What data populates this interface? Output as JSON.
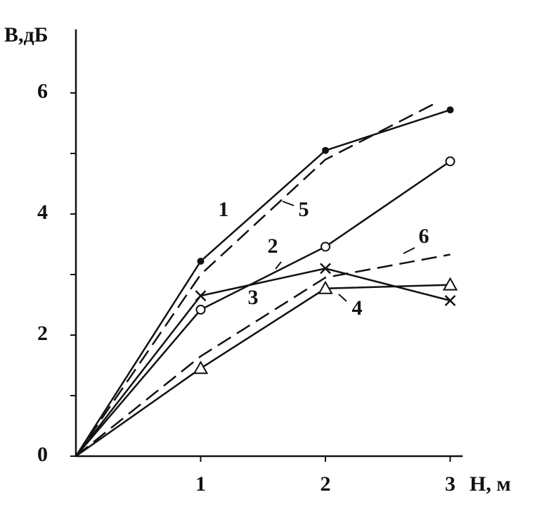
{
  "chart_data": {
    "type": "line",
    "y_label": "В,дБ",
    "x_label": "Н, м",
    "xlim": [
      0,
      3.1
    ],
    "ylim": [
      0,
      7.05
    ],
    "xticks": [
      1,
      2,
      3
    ],
    "yticks": [
      0,
      2,
      4,
      6
    ],
    "y_minor_ticks": [
      1,
      3,
      5
    ],
    "color": "#111111",
    "series": [
      {
        "name": "1",
        "marker": "dot",
        "dashed": false,
        "x": [
          0,
          1,
          2,
          3
        ],
        "values": [
          0,
          3.22,
          5.05,
          5.72
        ]
      },
      {
        "name": "2",
        "marker": "circle",
        "dashed": false,
        "x": [
          0,
          1,
          2,
          3
        ],
        "values": [
          0,
          2.42,
          3.46,
          4.87
        ]
      },
      {
        "name": "3",
        "marker": "cross",
        "dashed": false,
        "x": [
          0,
          1,
          2,
          3
        ],
        "values": [
          0,
          2.65,
          3.1,
          2.57
        ]
      },
      {
        "name": "4",
        "marker": "triangle",
        "dashed": false,
        "x": [
          0,
          1,
          2,
          3
        ],
        "values": [
          0,
          1.45,
          2.77,
          2.83
        ]
      },
      {
        "name": "5",
        "marker": "none",
        "dashed": true,
        "x": [
          0,
          1,
          2,
          2.9
        ],
        "values": [
          0,
          3.0,
          4.9,
          5.85
        ]
      },
      {
        "name": "6",
        "marker": "none",
        "dashed": true,
        "x": [
          0,
          1,
          2,
          3
        ],
        "values": [
          0,
          1.65,
          2.95,
          3.33
        ]
      }
    ]
  }
}
